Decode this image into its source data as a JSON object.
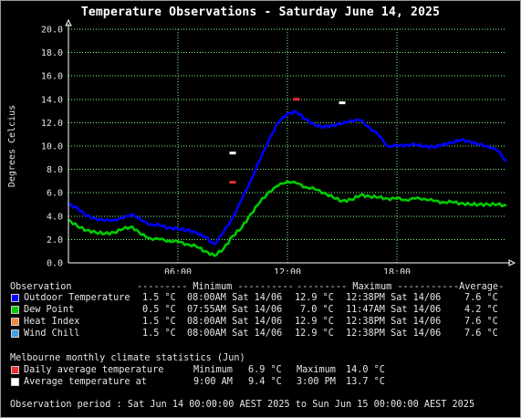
{
  "title": "Temperature Observations - Saturday June 14, 2025",
  "chart_data": {
    "type": "line",
    "title": "Temperature Observations - Saturday June 14, 2025",
    "xlabel": "",
    "ylabel": "Degrees Celcius",
    "xlim_hours": [
      0,
      24
    ],
    "ylim": [
      0,
      20
    ],
    "x_ticks": [
      "06:00",
      "12:00",
      "18:00"
    ],
    "y_ticks": [
      "0.0",
      "2.0",
      "4.0",
      "6.0",
      "8.0",
      "10.0",
      "12.0",
      "14.0",
      "16.0",
      "18.0",
      "20.0"
    ],
    "grid": true,
    "colors": {
      "outdoor": "#0000ff",
      "dewpoint": "#00cc00",
      "grid": "#7fff7f",
      "axes": "#ffffff",
      "daily_avg_marker": "#e83030",
      "avg_temp_marker": "#ffffff"
    },
    "series": [
      {
        "name": "Outdoor Temperature",
        "x_hours": [
          0,
          0.5,
          1,
          1.5,
          2,
          2.5,
          3,
          3.5,
          4,
          4.5,
          5,
          5.5,
          6,
          6.5,
          7,
          7.5,
          8,
          8.5,
          9,
          9.5,
          10,
          10.5,
          11,
          11.5,
          12,
          12.5,
          13,
          13.5,
          14,
          14.5,
          15,
          15.5,
          16,
          16.5,
          17,
          17.5,
          18,
          18.5,
          19,
          19.5,
          20,
          20.5,
          21,
          21.5,
          22,
          22.5,
          23,
          23.5,
          24
        ],
        "values": [
          5.0,
          4.7,
          4.0,
          3.8,
          3.6,
          3.7,
          3.8,
          4.2,
          3.6,
          3.3,
          3.2,
          3.0,
          2.9,
          2.8,
          2.6,
          2.2,
          1.6,
          2.6,
          3.9,
          5.4,
          7.1,
          8.8,
          10.6,
          12.0,
          12.8,
          12.9,
          12.3,
          11.8,
          11.6,
          11.8,
          11.9,
          12.2,
          12.2,
          11.6,
          10.9,
          10.0,
          10.0,
          10.1,
          10.1,
          10.0,
          9.9,
          10.1,
          10.3,
          10.5,
          10.4,
          10.1,
          10.0,
          9.6,
          8.7
        ]
      },
      {
        "name": "Dew Point",
        "x_hours": [
          0,
          0.5,
          1,
          1.5,
          2,
          2.5,
          3,
          3.5,
          4,
          4.5,
          5,
          5.5,
          6,
          6.5,
          7,
          7.5,
          8,
          8.5,
          9,
          9.5,
          10,
          10.5,
          11,
          11.5,
          12,
          12.5,
          13,
          13.5,
          14,
          14.5,
          15,
          15.5,
          16,
          16.5,
          17,
          17.5,
          18,
          18.5,
          19,
          19.5,
          20,
          20.5,
          21,
          21.5,
          22,
          22.5,
          23,
          23.5,
          24
        ],
        "values": [
          3.7,
          3.1,
          2.8,
          2.6,
          2.5,
          2.6,
          2.9,
          3.1,
          2.4,
          2.1,
          2.0,
          1.9,
          1.8,
          1.6,
          1.4,
          1.0,
          0.6,
          1.2,
          2.3,
          3.0,
          4.2,
          5.2,
          6.1,
          6.6,
          7.0,
          6.8,
          6.5,
          6.3,
          6.0,
          5.6,
          5.3,
          5.4,
          5.8,
          5.7,
          5.6,
          5.5,
          5.5,
          5.4,
          5.5,
          5.5,
          5.3,
          5.2,
          5.2,
          5.1,
          5.0,
          5.0,
          5.0,
          5.0,
          4.9
        ]
      }
    ],
    "markers": [
      {
        "name": "Daily average temperature",
        "min": {
          "x_hours": 9.0,
          "value": 6.9
        },
        "max": {
          "x_hours": 12.5,
          "value": 14.0
        }
      },
      {
        "name": "Average temperature at",
        "min": {
          "x_hours": 9.0,
          "value": 9.4
        },
        "max": {
          "x_hours": 15.0,
          "value": 13.7
        }
      }
    ]
  },
  "legend": {
    "header": {
      "col1": "Observation",
      "col2": "--------- Minimum ----------",
      "col3": "--------- Maximum ----------",
      "col4": "-Average-"
    },
    "rows": [
      {
        "color": "#0000ff",
        "name": "Outdoor Temperature",
        "min_val": "1.5 °C",
        "min_time": "08:00AM Sat 14/06",
        "max_val": "12.9 °C",
        "max_time": "12:38PM Sat 14/06",
        "avg": "7.6 °C"
      },
      {
        "color": "#00cc00",
        "name": "Dew Point",
        "min_val": "0.5 °C",
        "min_time": "07:55AM Sat 14/06",
        "max_val": "7.0 °C",
        "max_time": "11:47AM Sat 14/06",
        "avg": "4.2 °C"
      },
      {
        "color": "#f08c40",
        "name": "Heat Index",
        "min_val": "1.5 °C",
        "min_time": "08:00AM Sat 14/06",
        "max_val": "12.9 °C",
        "max_time": "12:38PM Sat 14/06",
        "avg": "7.6 °C"
      },
      {
        "color": "#40a0e8",
        "name": "Wind Chill",
        "min_val": "1.5 °C",
        "min_time": "08:00AM Sat 14/06",
        "max_val": "12.9 °C",
        "max_time": "12:38PM Sat 14/06",
        "avg": "7.6 °C"
      }
    ]
  },
  "climate": {
    "title": "Melbourne monthly climate statistics (Jun)",
    "rows": [
      {
        "color": "#e83030",
        "name": "Daily average temperature",
        "min_label": "Minimum",
        "min_val": "6.9 °C",
        "max_label": "Maximum",
        "max_val": "14.0 °C"
      },
      {
        "color": "#ffffff",
        "name": "Average temperature at",
        "min_label": "9:00 AM",
        "min_val": "9.4 °C",
        "max_label": "3:00 PM",
        "max_val": "13.7 °C"
      }
    ]
  },
  "observation_period": "Observation period : Sat Jun 14 00:00:00 AEST 2025 to Sun Jun 15 00:00:00 AEST 2025"
}
